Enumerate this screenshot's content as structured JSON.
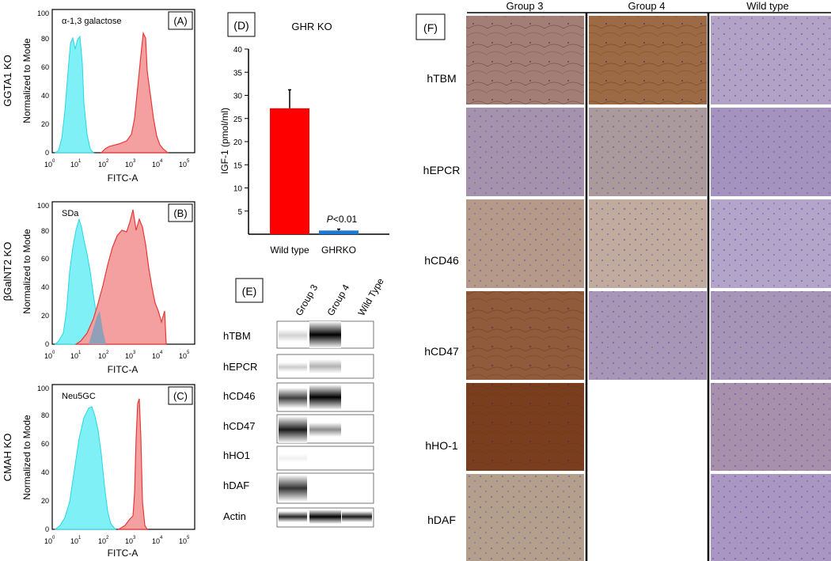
{
  "panels": {
    "A": {
      "tag": "(A)",
      "annotation": "α-1,3 galactose",
      "ylabel": "Normalized to Mode",
      "side_label": "GGTA1 KO",
      "xlabel": "FITC-A",
      "yticks": [
        "0",
        "20",
        "40",
        "60",
        "80",
        "100"
      ],
      "xticks": [
        "10",
        "10",
        "10",
        "10",
        "10",
        "10"
      ],
      "xexp": [
        "0",
        "1",
        "2",
        "3",
        "4",
        "5"
      ]
    },
    "B": {
      "tag": "(B)",
      "annotation": "SDa",
      "ylabel": "Normalized to Mode",
      "side_label": "βGalNT2 KO",
      "xlabel": "FITC-A",
      "yticks": [
        "0",
        "20",
        "40",
        "60",
        "80",
        "100"
      ],
      "xticks": [
        "10",
        "10",
        "10",
        "10",
        "10",
        "10"
      ],
      "xexp": [
        "0",
        "1",
        "2",
        "3",
        "4",
        "5"
      ]
    },
    "C": {
      "tag": "(C)",
      "annotation": "Neu5GC",
      "ylabel": "Normalized to Mode",
      "side_label": "CMAH KO",
      "xlabel": "FITC-A",
      "yticks": [
        "0",
        "20",
        "40",
        "60",
        "80",
        "100"
      ],
      "xticks": [
        "10",
        "10",
        "10",
        "10",
        "10",
        "10"
      ],
      "xexp": [
        "0",
        "1",
        "2",
        "3",
        "4",
        "5"
      ]
    },
    "D": {
      "tag": "(D)",
      "title": "GHR KO",
      "ylabel": "IGF-1 (pmol/ml)",
      "pvalue_p": "P",
      "pvalue_rest": "<0.01"
    },
    "E": {
      "tag": "(E)",
      "lanes": [
        "Group 3",
        "Group 4",
        "Wild Type"
      ],
      "rows": [
        "hTBM",
        "hEPCR",
        "hCD46",
        "hCD47",
        "hHO1",
        "hDAF",
        "Actin"
      ]
    },
    "F": {
      "tag": "(F)",
      "columns": [
        "Group 3",
        "Group 4",
        "Wild type"
      ],
      "rows": [
        "hTBM",
        "hEPCR",
        "hCD46",
        "hCD47",
        "hHO-1",
        "hDAF"
      ]
    }
  },
  "chart_data": [
    {
      "type": "bar",
      "panel": "D",
      "title": "GHR KO",
      "categories": [
        "Wild type",
        "GHRKO"
      ],
      "values": [
        27.2,
        0.8
      ],
      "error": [
        4.0,
        0.3
      ],
      "colors": [
        "#ff0000",
        "#1e78d8"
      ],
      "ylabel": "IGF-1 (pmol/ml)",
      "ylim": [
        0,
        40
      ],
      "yticks": [
        5,
        10,
        15,
        20,
        25,
        30,
        35,
        40
      ],
      "annotation": "P<0.01"
    }
  ],
  "colors": {
    "control_hist": "#7ff0f6",
    "ko_hist": "#f26a6a",
    "overlap": "#8fa0b8"
  }
}
